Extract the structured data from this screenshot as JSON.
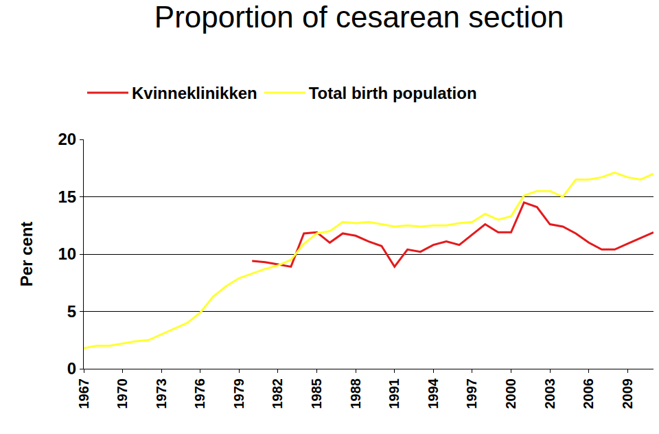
{
  "chart_data": {
    "type": "line",
    "title": "Proportion of cesarean section",
    "y_label": "Per cent",
    "x": [
      1967,
      1968,
      1969,
      1970,
      1971,
      1972,
      1973,
      1974,
      1975,
      1976,
      1977,
      1978,
      1979,
      1980,
      1981,
      1982,
      1983,
      1984,
      1985,
      1986,
      1987,
      1988,
      1989,
      1990,
      1991,
      1992,
      1993,
      1994,
      1995,
      1996,
      1997,
      1998,
      1999,
      2000,
      2001,
      2002,
      2003,
      2004,
      2005,
      2006,
      2007,
      2008,
      2009,
      2010,
      2011
    ],
    "series": [
      {
        "name": "Kvinneklinikken",
        "color": "#e41a1c",
        "values": [
          null,
          null,
          null,
          null,
          null,
          null,
          null,
          null,
          null,
          null,
          null,
          null,
          null,
          9.4,
          9.3,
          9.1,
          8.9,
          11.8,
          11.9,
          11.0,
          11.8,
          11.6,
          11.1,
          10.7,
          8.9,
          10.4,
          10.2,
          10.8,
          11.1,
          10.8,
          11.7,
          12.6,
          11.9,
          11.9,
          14.5,
          14.1,
          12.6,
          12.4,
          11.8,
          11.0,
          10.4,
          10.4,
          10.9,
          11.4,
          11.9
        ]
      },
      {
        "name": "Total birth population",
        "color": "#ffff33",
        "values": [
          1.8,
          2.0,
          2.0,
          2.2,
          2.4,
          2.5,
          3.0,
          3.5,
          4.0,
          4.9,
          6.3,
          7.2,
          7.9,
          8.3,
          8.7,
          9.0,
          9.5,
          10.9,
          11.8,
          12.0,
          12.8,
          12.7,
          12.8,
          12.6,
          12.4,
          12.5,
          12.4,
          12.5,
          12.5,
          12.7,
          12.8,
          13.5,
          13.0,
          13.3,
          15.1,
          15.5,
          15.5,
          15.0,
          16.5,
          16.5,
          16.7,
          17.1,
          16.7,
          16.5,
          17.0
        ]
      }
    ],
    "xlim": [
      1967,
      2011
    ],
    "xticks": [
      1967,
      1970,
      1973,
      1976,
      1979,
      1982,
      1985,
      1988,
      1991,
      1994,
      1997,
      2000,
      2003,
      2006,
      2009
    ],
    "ylim": [
      0,
      20
    ],
    "yticks": [
      0,
      5,
      10,
      15,
      20
    ],
    "grid": true,
    "legend": "top"
  }
}
